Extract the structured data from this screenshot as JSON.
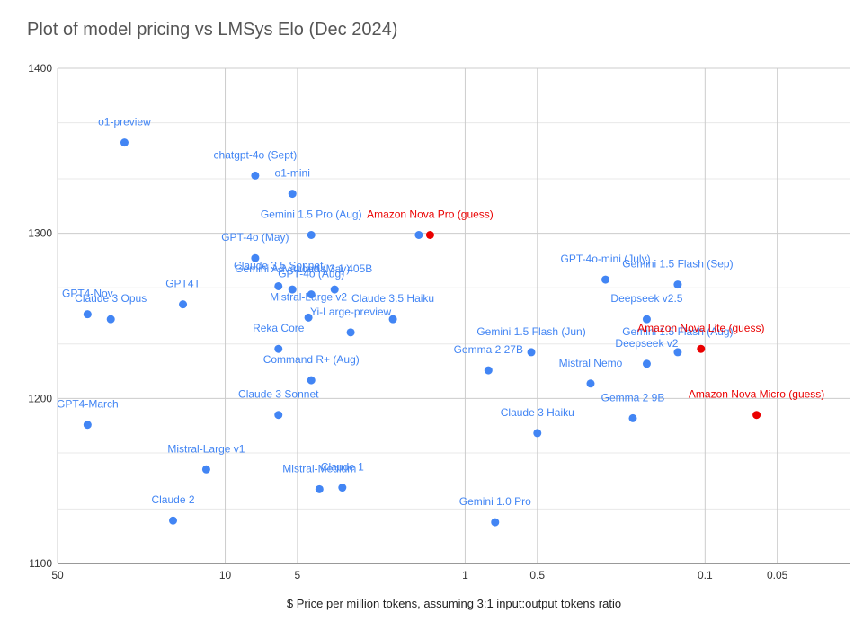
{
  "chart_data": {
    "type": "scatter",
    "title": "Plot of model pricing vs LMSys Elo (Dec 2024)",
    "xlabel": "$ Price per million tokens, assuming 3:1 input:output tokens ratio",
    "ylabel": "",
    "x_scale": "log",
    "x_reversed": true,
    "xlim": [
      50,
      0.025
    ],
    "ylim": [
      1100,
      1400
    ],
    "x_ticks": [
      {
        "value": 50,
        "label": "50"
      },
      {
        "value": 10,
        "label": "10"
      },
      {
        "value": 5,
        "label": "5"
      },
      {
        "value": 1,
        "label": "1"
      },
      {
        "value": 0.5,
        "label": "0.5"
      },
      {
        "value": 0.1,
        "label": "0.1"
      },
      {
        "value": 0.05,
        "label": "0.05"
      }
    ],
    "y_ticks": [
      {
        "value": 1100,
        "label": "1100"
      },
      {
        "value": 1200,
        "label": "1200"
      },
      {
        "value": 1300,
        "label": "1300"
      },
      {
        "value": 1400,
        "label": "1400"
      }
    ],
    "y_minor_gridlines": [
      1133,
      1167,
      1233,
      1267,
      1333,
      1367
    ],
    "grid": true,
    "colors": {
      "actual": "#4285F4",
      "guess": "#EA0000"
    },
    "points": [
      {
        "label": "o1-preview",
        "x": 26.3,
        "y": 1355,
        "group": "actual",
        "label_dx": 0,
        "anchor": "middle"
      },
      {
        "label": "chatgpt-4o (Sept)",
        "x": 7.5,
        "y": 1335,
        "group": "actual",
        "label_dx": 0,
        "anchor": "middle"
      },
      {
        "label": "o1-mini",
        "x": 5.25,
        "y": 1324,
        "group": "actual",
        "label_dx": 0,
        "anchor": "middle"
      },
      {
        "label": "Gemini 1.5 Pro (Aug)",
        "x": 4.38,
        "y": 1299,
        "group": "actual",
        "label_dx": 0,
        "anchor": "middle"
      },
      {
        "label": "Amazon Nova Pro (guess)",
        "x": 1.4,
        "y": 1299,
        "group": "guess",
        "label_dx": 0,
        "anchor": "middle"
      },
      {
        "label": "",
        "x": 1.56,
        "y": 1299,
        "group": "actual",
        "label_dx": 0,
        "anchor": "middle"
      },
      {
        "label": "GPT-4o (May)",
        "x": 7.5,
        "y": 1285,
        "group": "actual",
        "label_dx": 0,
        "anchor": "middle"
      },
      {
        "label": "Claude 3.5 Sonnet",
        "x": 6.0,
        "y": 1268,
        "group": "actual",
        "label_dx": 0,
        "anchor": "middle"
      },
      {
        "label": "Gemini Advanced (May)",
        "x": 5.25,
        "y": 1266,
        "group": "actual",
        "label_dx": 0,
        "anchor": "middle"
      },
      {
        "label": "Llama 3.1 405B",
        "x": 3.5,
        "y": 1266,
        "group": "actual",
        "label_dx": 0,
        "anchor": "middle"
      },
      {
        "label": "GPT-4o (Aug)",
        "x": 4.38,
        "y": 1263,
        "group": "actual",
        "label_dx": 0,
        "anchor": "middle"
      },
      {
        "label": "Mistral-Large v2",
        "x": 4.5,
        "y": 1249,
        "group": "actual",
        "label_dx": 0,
        "anchor": "middle"
      },
      {
        "label": "Claude 3.5 Haiku",
        "x": 2.0,
        "y": 1248,
        "group": "actual",
        "label_dx": 0,
        "anchor": "middle"
      },
      {
        "label": "Yi-Large-preview",
        "x": 3.0,
        "y": 1240,
        "group": "actual",
        "label_dx": 0,
        "anchor": "middle"
      },
      {
        "label": "GPT4-Nov",
        "x": 37.5,
        "y": 1251,
        "group": "actual",
        "label_dx": 0,
        "anchor": "middle"
      },
      {
        "label": "Claude 3 Opus",
        "x": 30.0,
        "y": 1248,
        "group": "actual",
        "label_dx": 0,
        "anchor": "middle"
      },
      {
        "label": "GPT4T",
        "x": 15.0,
        "y": 1257,
        "group": "actual",
        "label_dx": 0,
        "anchor": "middle"
      },
      {
        "label": "Reka Core",
        "x": 6.0,
        "y": 1230,
        "group": "actual",
        "label_dx": 0,
        "anchor": "middle"
      },
      {
        "label": "Command R+ (Aug)",
        "x": 4.38,
        "y": 1211,
        "group": "actual",
        "label_dx": 0,
        "anchor": "middle"
      },
      {
        "label": "Claude 3 Sonnet",
        "x": 6.0,
        "y": 1190,
        "group": "actual",
        "label_dx": 0,
        "anchor": "middle"
      },
      {
        "label": "GPT4-March",
        "x": 37.5,
        "y": 1184,
        "group": "actual",
        "label_dx": 0,
        "anchor": "middle"
      },
      {
        "label": "Mistral-Large v1",
        "x": 12.0,
        "y": 1157,
        "group": "actual",
        "label_dx": 0,
        "anchor": "middle"
      },
      {
        "label": "Mistral-Medium",
        "x": 4.05,
        "y": 1145,
        "group": "actual",
        "label_dx": 0,
        "anchor": "middle"
      },
      {
        "label": "Claude 1",
        "x": 3.25,
        "y": 1146,
        "group": "actual",
        "label_dx": 0,
        "anchor": "middle"
      },
      {
        "label": "Claude 2",
        "x": 16.5,
        "y": 1126,
        "group": "actual",
        "label_dx": 0,
        "anchor": "middle"
      },
      {
        "label": "Gemini 1.0 Pro",
        "x": 0.75,
        "y": 1125,
        "group": "actual",
        "label_dx": 0,
        "anchor": "middle"
      },
      {
        "label": "Gemini 1.5 Flash (Jun)",
        "x": 0.53,
        "y": 1228,
        "group": "actual",
        "label_dx": 0,
        "anchor": "middle"
      },
      {
        "label": "Gemma 2 27B",
        "x": 0.8,
        "y": 1217,
        "group": "actual",
        "label_dx": 0,
        "anchor": "middle"
      },
      {
        "label": "Mistral Nemo",
        "x": 0.3,
        "y": 1209,
        "group": "actual",
        "label_dx": 0,
        "anchor": "middle"
      },
      {
        "label": "Claude 3 Haiku",
        "x": 0.5,
        "y": 1179,
        "group": "actual",
        "label_dx": 0,
        "anchor": "middle"
      },
      {
        "label": "Gemma 2 9B",
        "x": 0.2,
        "y": 1188,
        "group": "actual",
        "label_dx": 0,
        "anchor": "middle"
      },
      {
        "label": "GPT-4o-mini (July)",
        "x": 0.26,
        "y": 1272,
        "group": "actual",
        "label_dx": 0,
        "anchor": "middle"
      },
      {
        "label": "Gemini 1.5 Flash (Sep)",
        "x": 0.13,
        "y": 1269,
        "group": "actual",
        "label_dx": 0,
        "anchor": "middle"
      },
      {
        "label": "Deepseek v2.5",
        "x": 0.175,
        "y": 1248,
        "group": "actual",
        "label_dx": 0,
        "anchor": "middle"
      },
      {
        "label": "Gemini 1.5 Flash (Aug)",
        "x": 0.13,
        "y": 1228,
        "group": "actual",
        "label_dx": 0,
        "anchor": "middle"
      },
      {
        "label": "Deepseek v2",
        "x": 0.175,
        "y": 1221,
        "group": "actual",
        "label_dx": 0,
        "anchor": "middle"
      },
      {
        "label": "Amazon Nova Lite (guess)",
        "x": 0.104,
        "y": 1230,
        "group": "guess",
        "label_dx": 0,
        "anchor": "middle"
      },
      {
        "label": "Amazon Nova Micro (guess)",
        "x": 0.061,
        "y": 1190,
        "group": "guess",
        "label_dx": 0,
        "anchor": "middle"
      }
    ]
  }
}
